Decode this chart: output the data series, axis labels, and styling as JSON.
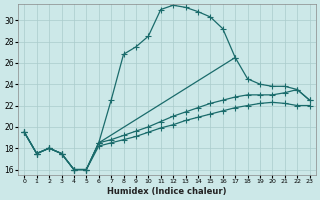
{
  "xlabel": "Humidex (Indice chaleur)",
  "bg_color": "#cce8e8",
  "grid_color": "#aacccc",
  "line_color": "#1a6b6b",
  "xlim": [
    -0.5,
    23.5
  ],
  "ylim": [
    15.5,
    31.5
  ],
  "xticks": [
    0,
    1,
    2,
    3,
    4,
    5,
    6,
    7,
    8,
    9,
    10,
    11,
    12,
    13,
    14,
    15,
    16,
    17,
    18,
    19,
    20,
    21,
    22,
    23
  ],
  "yticks": [
    16,
    18,
    20,
    22,
    24,
    26,
    28,
    30
  ],
  "series1_x": [
    0,
    1,
    2,
    3,
    4,
    5,
    6,
    7,
    8,
    9,
    10,
    11,
    12,
    13,
    14,
    15,
    16,
    17
  ],
  "series1_y": [
    19.5,
    17.5,
    18.0,
    17.5,
    16.0,
    16.0,
    18.5,
    22.5,
    26.8,
    27.5,
    28.5,
    31.0,
    31.4,
    31.2,
    30.8,
    30.3,
    29.2,
    26.5
  ],
  "series2_x": [
    0,
    1,
    2,
    3,
    4,
    5,
    6,
    17,
    18,
    19,
    20,
    21,
    22,
    23
  ],
  "series2_y": [
    19.5,
    17.5,
    18.0,
    17.5,
    16.0,
    16.0,
    18.5,
    26.5,
    24.5,
    24.0,
    23.8,
    23.8,
    23.5,
    22.5
  ],
  "series3_x": [
    0,
    1,
    2,
    3,
    4,
    5,
    6,
    7,
    8,
    9,
    10,
    11,
    12,
    13,
    14,
    15,
    16,
    17,
    18,
    19,
    20,
    21,
    22,
    23
  ],
  "series3_y": [
    19.5,
    17.5,
    18.0,
    17.5,
    16.0,
    16.0,
    18.5,
    18.8,
    19.2,
    19.6,
    20.0,
    20.5,
    21.0,
    21.4,
    21.8,
    22.2,
    22.5,
    22.8,
    23.0,
    23.0,
    23.0,
    23.2,
    23.5,
    22.5
  ],
  "series4_x": [
    0,
    1,
    2,
    3,
    4,
    5,
    6,
    7,
    8,
    9,
    10,
    11,
    12,
    13,
    14,
    15,
    16,
    17,
    18,
    19,
    20,
    21,
    22,
    23
  ],
  "series4_y": [
    19.5,
    17.5,
    18.0,
    17.5,
    16.0,
    16.0,
    18.2,
    18.5,
    18.8,
    19.1,
    19.5,
    19.9,
    20.2,
    20.6,
    20.9,
    21.2,
    21.5,
    21.8,
    22.0,
    22.2,
    22.3,
    22.2,
    22.0,
    22.0
  ]
}
